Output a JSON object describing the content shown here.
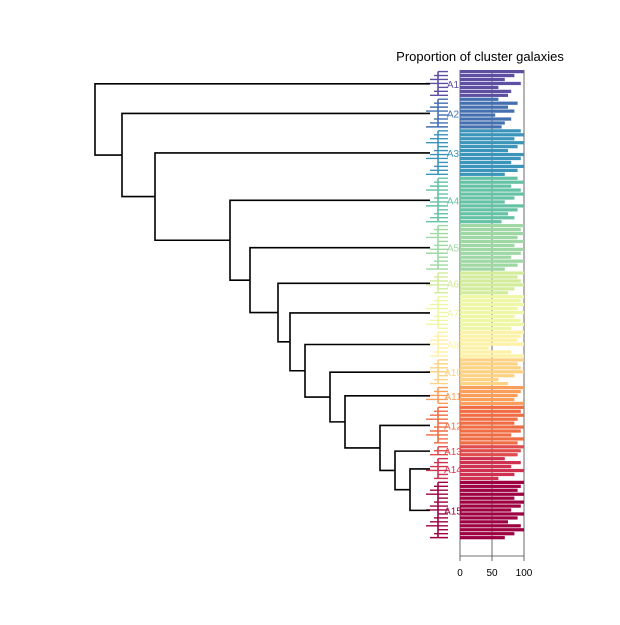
{
  "chart_data": {
    "type": "bar",
    "title": "Proportion of cluster galaxies",
    "xlabel": "",
    "ylabel": "",
    "xlim": [
      0,
      100
    ],
    "x_ticks": [
      "0",
      "50",
      "100"
    ],
    "gridlines_at": [
      0,
      50,
      100
    ],
    "orientation": "horizontal",
    "left_panel": "dendrogram of galaxy groups",
    "clusters": [
      {
        "label": "A1",
        "color": "#5e4fa2",
        "values": [
          100,
          85,
          70,
          95,
          60,
          80,
          75
        ]
      },
      {
        "label": "A2",
        "color": "#4470b0",
        "values": [
          60,
          90,
          75,
          85,
          55,
          80,
          70,
          65
        ]
      },
      {
        "label": "A3",
        "color": "#3b94ba",
        "values": [
          95,
          100,
          85,
          100,
          90,
          75,
          100,
          95,
          80,
          100,
          90,
          70
        ]
      },
      {
        "label": "A4",
        "color": "#66c2a5",
        "values": [
          90,
          100,
          80,
          95,
          100,
          85,
          70,
          100,
          90,
          75,
          85,
          65
        ]
      },
      {
        "label": "A5",
        "color": "#9fd8a4",
        "values": [
          100,
          95,
          100,
          90,
          100,
          85,
          100,
          95,
          80,
          100,
          90,
          70
        ]
      },
      {
        "label": "A6",
        "color": "#d2ec9b",
        "values": [
          100,
          90,
          95,
          100,
          85,
          75
        ]
      },
      {
        "label": "A7",
        "color": "#eef7a4",
        "values": [
          100,
          95,
          100,
          90,
          100,
          85,
          95,
          100,
          80
        ]
      },
      {
        "label": "A8",
        "color": "#fdf1a6",
        "values": [
          100,
          95,
          90,
          100,
          45,
          80,
          100
        ]
      },
      {
        "label": "A10",
        "color": "#fdd283",
        "values": [
          100,
          90,
          95,
          100,
          85,
          60,
          75
        ]
      },
      {
        "label": "A11",
        "color": "#fa9e5b",
        "values": [
          100,
          95,
          90,
          85,
          100
        ]
      },
      {
        "label": "A12",
        "color": "#f06d44",
        "values": [
          100,
          95,
          100,
          90,
          85,
          100,
          95,
          80,
          100,
          90
        ]
      },
      {
        "label": "A13",
        "color": "#e04b4d",
        "values": [
          100,
          95,
          90
        ]
      },
      {
        "label": "A14",
        "color": "#cf3250",
        "values": [
          70,
          95,
          80,
          100,
          85,
          60
        ]
      },
      {
        "label": "A15",
        "color": "#9e0142",
        "values": [
          100,
          95,
          90,
          100,
          85,
          100,
          95,
          80,
          100,
          90,
          75,
          95,
          100,
          85,
          70
        ]
      }
    ]
  }
}
